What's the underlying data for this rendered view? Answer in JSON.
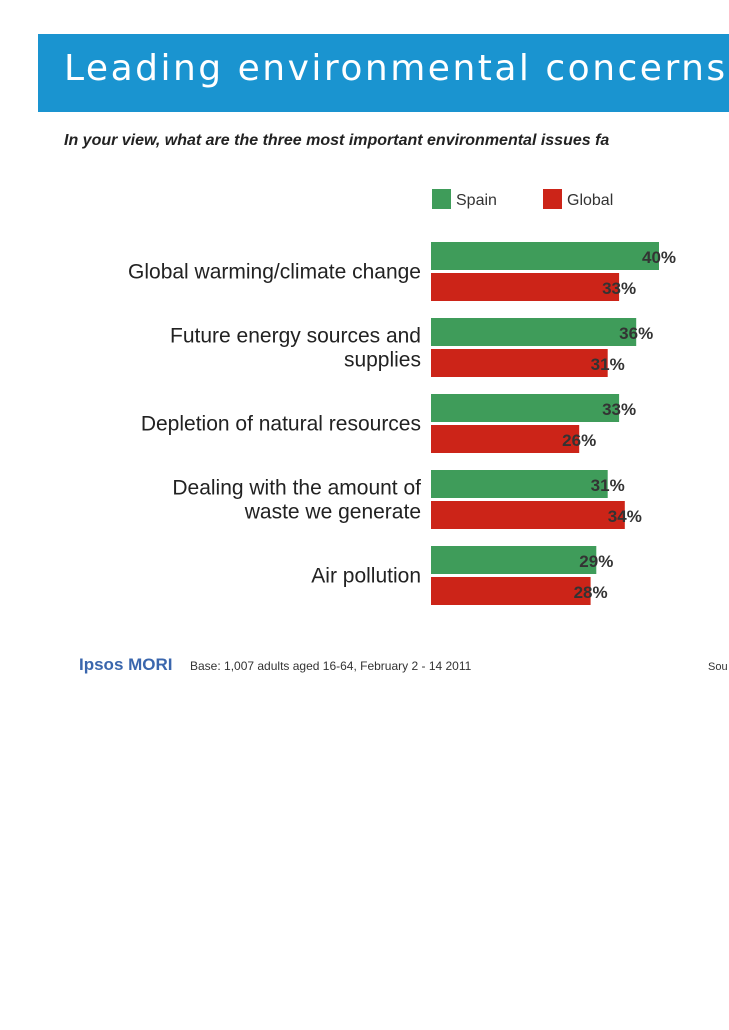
{
  "header": {
    "title": "Leading environmental concerns",
    "subtitle": "In your view, what are the three most important environmental issues fa"
  },
  "chart_data": {
    "type": "bar",
    "orientation": "horizontal",
    "categories": [
      [
        "Global warming/climate change"
      ],
      [
        "Future energy sources and",
        "supplies"
      ],
      [
        "Depletion of natural resources"
      ],
      [
        "Dealing with the amount of",
        "waste we generate"
      ],
      [
        "Air pollution"
      ]
    ],
    "series": [
      {
        "name": "Spain",
        "color": "#3f9c5a",
        "values": [
          40,
          36,
          33,
          31,
          29
        ],
        "labels": [
          "40%",
          "36%",
          "33%",
          "31%",
          "29%"
        ]
      },
      {
        "name": "Global",
        "color": "#cc2418",
        "values": [
          33,
          31,
          26,
          34,
          28
        ],
        "labels": [
          "33%",
          "31%",
          "26%",
          "34%",
          "28%"
        ]
      }
    ],
    "legend": [
      "Spain",
      "Global"
    ],
    "legend_position": "top-right",
    "xlim": [
      0,
      40
    ],
    "grid": false
  },
  "footer": {
    "logo": "Ipsos MORI",
    "base": "Base: 1,007 adults aged 16-64, February 2 - 14 2011",
    "source": "Sou"
  }
}
